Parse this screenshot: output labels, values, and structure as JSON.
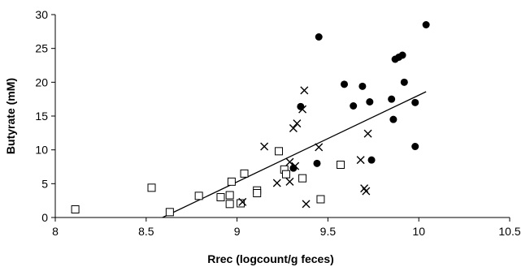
{
  "chart_data": {
    "type": "scatter",
    "title": "",
    "xlabel": "Rrec (logcount/g feces)",
    "ylabel": "Butyrate (mM)",
    "xlim": [
      8,
      10.5
    ],
    "ylim": [
      0,
      30
    ],
    "x_ticks": [
      "8",
      "8.5",
      "9",
      "9.5",
      "10",
      "10.5"
    ],
    "y_ticks": [
      "0",
      "5",
      "10",
      "15",
      "20",
      "25",
      "30"
    ],
    "grid": false,
    "legend": "none",
    "series": [
      {
        "marker": "open-square",
        "color": "#000000",
        "points": [
          [
            8.11,
            1.2
          ],
          [
            8.53,
            4.4
          ],
          [
            8.63,
            0.8
          ],
          [
            8.79,
            3.2
          ],
          [
            8.91,
            3.0
          ],
          [
            8.96,
            3.3
          ],
          [
            8.96,
            2.0
          ],
          [
            8.97,
            5.3
          ],
          [
            9.04,
            6.5
          ],
          [
            9.02,
            2.1
          ],
          [
            9.11,
            4.0
          ],
          [
            9.11,
            3.6
          ],
          [
            9.23,
            9.8
          ],
          [
            9.26,
            7.1
          ],
          [
            9.27,
            6.4
          ],
          [
            9.36,
            5.8
          ],
          [
            9.46,
            2.7
          ],
          [
            9.57,
            7.8
          ]
        ]
      },
      {
        "marker": "x",
        "color": "#000000",
        "points": [
          [
            9.03,
            2.3
          ],
          [
            9.15,
            10.5
          ],
          [
            9.22,
            5.1
          ],
          [
            9.29,
            5.3
          ],
          [
            9.29,
            8.2
          ],
          [
            9.31,
            13.2
          ],
          [
            9.33,
            13.9
          ],
          [
            9.32,
            7.6
          ],
          [
            9.36,
            16.0
          ],
          [
            9.37,
            18.8
          ],
          [
            9.38,
            2.0
          ],
          [
            9.45,
            10.4
          ],
          [
            9.68,
            8.5
          ],
          [
            9.7,
            4.3
          ],
          [
            9.71,
            3.9
          ],
          [
            9.72,
            12.4
          ]
        ]
      },
      {
        "marker": "filled-circle",
        "color": "#000000",
        "points": [
          [
            9.31,
            7.3
          ],
          [
            9.35,
            16.4
          ],
          [
            9.44,
            8.0
          ],
          [
            9.45,
            26.7
          ],
          [
            9.59,
            19.7
          ],
          [
            9.64,
            16.5
          ],
          [
            9.69,
            19.4
          ],
          [
            9.73,
            17.1
          ],
          [
            9.74,
            8.5
          ],
          [
            9.85,
            17.5
          ],
          [
            9.86,
            14.5
          ],
          [
            9.87,
            23.4
          ],
          [
            9.89,
            23.7
          ],
          [
            9.91,
            24.0
          ],
          [
            9.92,
            20.0
          ],
          [
            9.98,
            17.0
          ],
          [
            9.98,
            10.5
          ],
          [
            10.04,
            28.5
          ]
        ]
      }
    ],
    "trendline": {
      "x": [
        8.59,
        10.04
      ],
      "y": [
        0,
        18.6
      ]
    }
  }
}
